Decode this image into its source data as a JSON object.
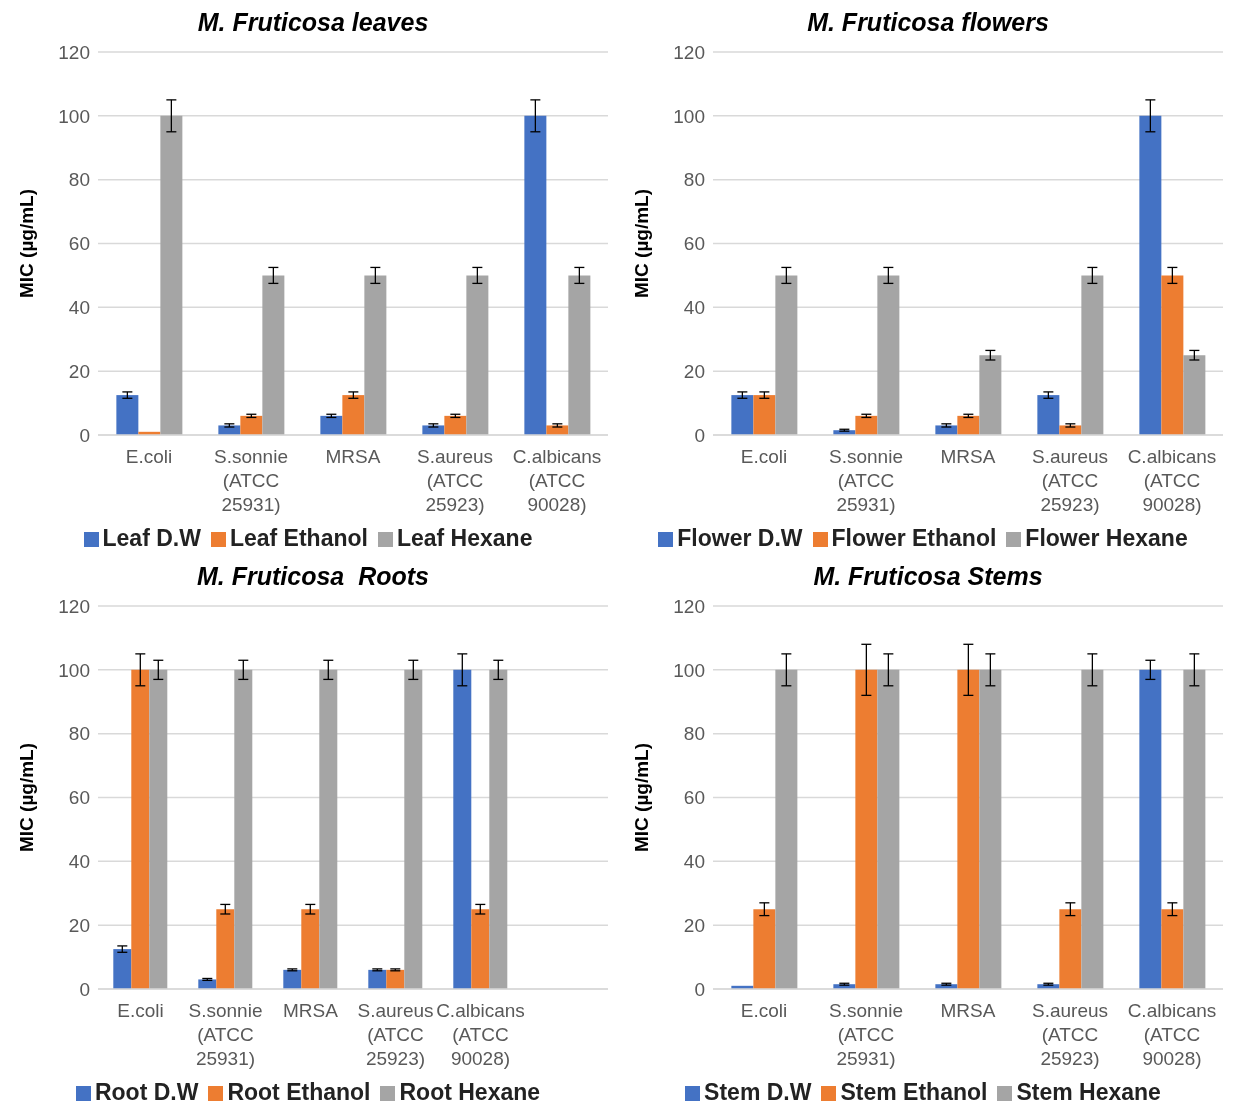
{
  "chart_data": [
    {
      "type": "bar",
      "title": "M. Fruticosa leaves",
      "ylabel": "MIC (µg/mL)",
      "categories": [
        "E.coli",
        "S.sonnie (ATCC 25931)",
        "MRSA",
        "S.aureus (ATCC 25923)",
        "C.albicans (ATCC 90028)"
      ],
      "ylim": [
        0,
        120
      ],
      "yticks": [
        0,
        20,
        40,
        60,
        80,
        100,
        120
      ],
      "grid": "y",
      "legend": "bottom",
      "series": [
        {
          "name": "Leaf D.W",
          "color": "#4472c4",
          "values": [
            12.5,
            3,
            6,
            3,
            100
          ],
          "errors": [
            1,
            0.5,
            0.5,
            0.5,
            5
          ]
        },
        {
          "name": "Leaf Ethanol",
          "color": "#ed7d31",
          "values": [
            1,
            6,
            12.5,
            6,
            3
          ],
          "errors": [
            null,
            0.5,
            1,
            0.5,
            0.5
          ]
        },
        {
          "name": "Leaf Hexane",
          "color": "#a5a5a5",
          "values": [
            100,
            50,
            50,
            50,
            50
          ],
          "errors": [
            5,
            2.5,
            2.5,
            2.5,
            2.5
          ]
        }
      ]
    },
    {
      "type": "bar",
      "title": "M. Fruticosa flowers",
      "ylabel": "MIC (µg/mL)",
      "categories": [
        "E.coli",
        "S.sonnie (ATCC 25931)",
        "MRSA",
        "S.aureus (ATCC 25923)",
        "C.albicans (ATCC 90028)"
      ],
      "ylim": [
        0,
        120
      ],
      "yticks": [
        0,
        20,
        40,
        60,
        80,
        100,
        120
      ],
      "grid": "y",
      "legend": "bottom",
      "series": [
        {
          "name": "Flower D.W",
          "color": "#4472c4",
          "values": [
            12.5,
            1.5,
            3,
            12.5,
            100
          ],
          "errors": [
            1,
            0.3,
            0.5,
            1,
            5
          ]
        },
        {
          "name": "Flower Ethanol",
          "color": "#ed7d31",
          "values": [
            12.5,
            6,
            6,
            3,
            50
          ],
          "errors": [
            1,
            0.5,
            0.5,
            0.5,
            2.5
          ]
        },
        {
          "name": "Flower Hexane",
          "color": "#a5a5a5",
          "values": [
            50,
            50,
            25,
            50,
            25
          ],
          "errors": [
            2.5,
            2.5,
            1.5,
            2.5,
            1.5
          ]
        }
      ]
    },
    {
      "type": "bar",
      "title": "M. Fruticosa  Roots",
      "ylabel": "MIC (µg/mL)",
      "categories": [
        "E.coli",
        "S.sonnie (ATCC 25931)",
        "MRSA",
        "S.aureus (ATCC 25923)",
        "C.albicans (ATCC 90028)",
        null
      ],
      "ylim": [
        0,
        120
      ],
      "yticks": [
        0,
        20,
        40,
        60,
        80,
        100,
        120
      ],
      "grid": "y",
      "legend": "bottom",
      "series": [
        {
          "name": "Root D.W",
          "color": "#4472c4",
          "values": [
            12.5,
            3,
            6,
            6,
            100,
            null
          ],
          "errors": [
            1,
            0.3,
            0.3,
            0.3,
            5,
            null
          ]
        },
        {
          "name": "Root Ethanol",
          "color": "#ed7d31",
          "values": [
            100,
            25,
            25,
            6,
            25,
            null
          ],
          "errors": [
            5,
            1.5,
            1.5,
            0.3,
            1.5,
            null
          ]
        },
        {
          "name": "Root Hexane",
          "color": "#a5a5a5",
          "values": [
            100,
            100,
            100,
            100,
            100,
            null
          ],
          "errors": [
            3,
            3,
            3,
            3,
            3,
            null
          ]
        }
      ]
    },
    {
      "type": "bar",
      "title": "M. Fruticosa Stems",
      "ylabel": "MIC (µg/mL)",
      "categories": [
        "E.coli",
        "S.sonnie (ATCC 25931)",
        "MRSA",
        "S.aureus (ATCC 25923)",
        "C.albicans (ATCC 90028)"
      ],
      "ylim": [
        0,
        120
      ],
      "yticks": [
        0,
        20,
        40,
        60,
        80,
        100,
        120
      ],
      "grid": "y",
      "legend": "bottom",
      "series": [
        {
          "name": "Stem D.W",
          "color": "#4472c4",
          "values": [
            1,
            1.5,
            1.5,
            1.5,
            100
          ],
          "errors": [
            null,
            0.3,
            0.3,
            0.3,
            3
          ]
        },
        {
          "name": "Stem Ethanol",
          "color": "#ed7d31",
          "values": [
            25,
            100,
            100,
            25,
            25
          ],
          "errors": [
            2,
            8,
            8,
            2,
            2
          ]
        },
        {
          "name": "Stem Hexane",
          "color": "#a5a5a5",
          "values": [
            100,
            100,
            100,
            100,
            100
          ],
          "errors": [
            5,
            5,
            5,
            5,
            5
          ]
        }
      ]
    }
  ]
}
